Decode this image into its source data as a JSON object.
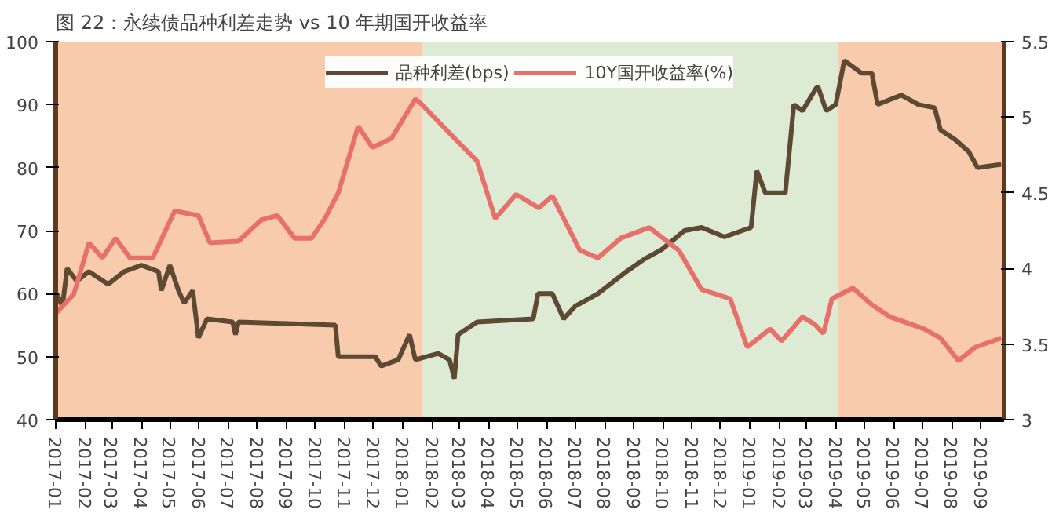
{
  "chart_data": {
    "type": "line",
    "title": "图 22：永续债品种利差走势 vs 10 年期国开收益率",
    "xlim": [
      "2017-01-01",
      "2019-09-25"
    ],
    "xticks": [
      "2017-01",
      "2017-02",
      "2017-03",
      "2017-04",
      "2017-05",
      "2017-06",
      "2017-07",
      "2017-08",
      "2017-09",
      "2017-10",
      "2017-11",
      "2017-12",
      "2018-01",
      "2018-02",
      "2018-03",
      "2018-04",
      "2018-05",
      "2018-06",
      "2018-07",
      "2018-08",
      "2018-09",
      "2018-10",
      "2018-11",
      "2018-12",
      "2019-01",
      "2019-02",
      "2019-03",
      "2019-04",
      "2019-05",
      "2019-06",
      "2019-07",
      "2019-08",
      "2019-09"
    ],
    "ylim": [
      40,
      100
    ],
    "yticks": [
      40,
      50,
      60,
      70,
      80,
      90,
      100
    ],
    "y2lim": [
      3,
      5.5
    ],
    "y2ticks": [
      3,
      3.5,
      4,
      4.5,
      5,
      5.5
    ],
    "grid": false,
    "legend": "top",
    "marker": "none",
    "line_style": "solid",
    "bands": [
      {
        "axis": "x",
        "from": "2017-01-01",
        "to": "2018-01-22",
        "color": "#f8cbad"
      },
      {
        "axis": "x",
        "from": "2018-01-22",
        "to": "2019-04-03",
        "color": "#deebd4"
      },
      {
        "axis": "x",
        "from": "2019-04-03",
        "to": "2019-09-25",
        "color": "#f8cbad"
      }
    ],
    "series": [
      {
        "name": "品种利差(bps)",
        "color": "#5e4a33",
        "x": [
          "2017-01-02",
          "2017-01-08",
          "2017-01-13",
          "2017-01-23",
          "2017-02-05",
          "2017-02-25",
          "2017-03-14",
          "2017-04-01",
          "2017-04-19",
          "2017-04-22",
          "2017-05-01",
          "2017-05-10",
          "2017-05-16",
          "2017-05-25",
          "2017-05-31",
          "2017-06-09",
          "2017-07-06",
          "2017-07-09",
          "2017-07-12",
          "2017-10-22",
          "2017-10-25",
          "2017-12-03",
          "2017-12-09",
          "2017-12-27",
          "2018-01-08",
          "2018-01-14",
          "2018-02-07",
          "2018-02-19",
          "2018-02-24",
          "2018-02-28",
          "2018-03-20",
          "2018-05-18",
          "2018-05-23",
          "2018-06-07",
          "2018-06-19",
          "2018-07-01",
          "2018-07-25",
          "2018-08-24",
          "2018-09-12",
          "2018-09-30",
          "2018-10-24",
          "2018-11-11",
          "2018-12-05",
          "2019-01-02",
          "2019-01-08",
          "2019-01-17",
          "2019-02-07",
          "2019-02-16",
          "2019-02-25",
          "2019-03-13",
          "2019-03-22",
          "2019-04-01",
          "2019-04-10",
          "2019-04-28",
          "2019-05-09",
          "2019-05-15",
          "2019-06-09",
          "2019-06-27",
          "2019-07-14",
          "2019-07-20",
          "2019-08-04",
          "2019-08-19",
          "2019-08-28",
          "2019-09-22"
        ],
        "values": [
          60,
          58,
          64,
          62,
          63.5,
          61.5,
          63.5,
          64.5,
          63.5,
          60.5,
          64.5,
          60.5,
          58.5,
          60.5,
          53,
          56,
          55.5,
          53.5,
          55.5,
          55,
          50,
          50,
          48.5,
          49.5,
          53.5,
          49.5,
          50.5,
          49.5,
          46.5,
          53.5,
          55.5,
          56,
          60,
          60,
          56,
          58,
          60,
          63.5,
          65.5,
          67,
          70,
          70.5,
          69,
          70.5,
          79.5,
          76,
          76,
          90,
          89,
          93,
          89,
          90,
          97,
          95,
          95,
          90,
          91.5,
          90,
          89.5,
          86,
          84.5,
          82.5,
          80,
          80.5
        ]
      },
      {
        "name": "10Y国开收益率(%)",
        "color": "#e8706a",
        "axis": "y2",
        "x": [
          "2017-01-02",
          "2017-01-20",
          "2017-02-05",
          "2017-02-19",
          "2017-03-05",
          "2017-03-20",
          "2017-04-13",
          "2017-05-06",
          "2017-05-31",
          "2017-06-12",
          "2017-07-12",
          "2017-08-05",
          "2017-08-22",
          "2017-09-09",
          "2017-09-27",
          "2017-10-11",
          "2017-10-25",
          "2017-11-15",
          "2017-11-30",
          "2017-12-20",
          "2018-01-14",
          "2018-01-20",
          "2018-02-12",
          "2018-03-01",
          "2018-03-20",
          "2018-04-08",
          "2018-04-30",
          "2018-05-24",
          "2018-06-07",
          "2018-07-06",
          "2018-07-25",
          "2018-08-18",
          "2018-09-17",
          "2018-10-18",
          "2018-11-11",
          "2018-12-11",
          "2018-12-29",
          "2019-01-22",
          "2019-02-03",
          "2019-02-25",
          "2019-03-10",
          "2019-03-19",
          "2019-03-28",
          "2019-04-19",
          "2019-05-09",
          "2019-05-28",
          "2019-07-03",
          "2019-07-20",
          "2019-08-08",
          "2019-08-26",
          "2019-09-22"
        ],
        "values": [
          3.71,
          3.83,
          4.17,
          4.07,
          4.2,
          4.07,
          4.07,
          4.38,
          4.35,
          4.17,
          4.18,
          4.32,
          4.35,
          4.2,
          4.2,
          4.33,
          4.5,
          4.94,
          4.8,
          4.86,
          5.12,
          5.09,
          4.94,
          4.83,
          4.71,
          4.33,
          4.49,
          4.4,
          4.48,
          4.12,
          4.07,
          4.2,
          4.27,
          4.12,
          3.86,
          3.8,
          3.48,
          3.6,
          3.52,
          3.68,
          3.63,
          3.57,
          3.8,
          3.87,
          3.76,
          3.68,
          3.6,
          3.54,
          3.39,
          3.48,
          3.54
        ]
      }
    ]
  }
}
